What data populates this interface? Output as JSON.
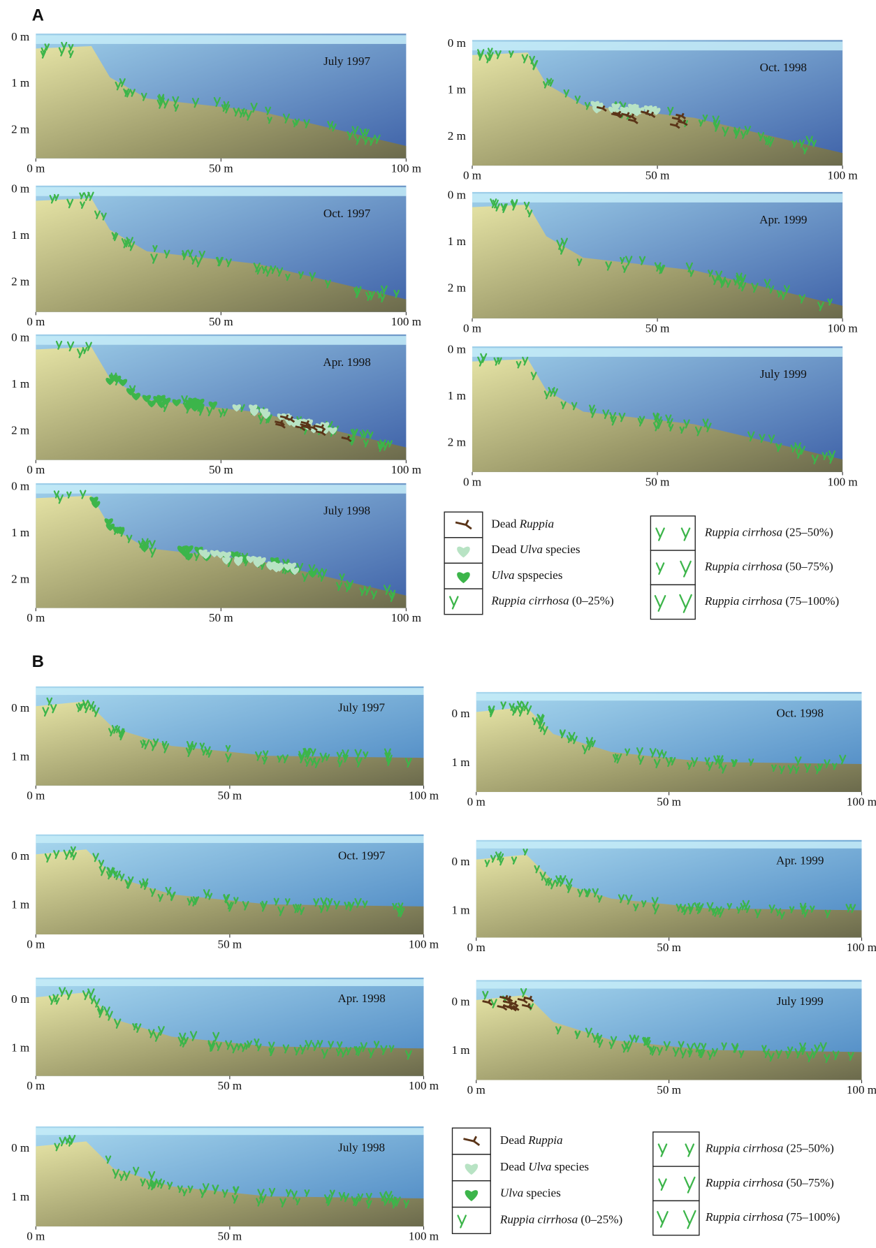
{
  "sections": [
    {
      "label": "A",
      "left": [
        {
          "title": "July 1997",
          "depth_ticks": [
            "0 m",
            "1 m",
            "2 m"
          ],
          "distance_ticks": [
            "0 m",
            "50 m",
            "100 m"
          ]
        },
        {
          "title": "Oct. 1997",
          "depth_ticks": [
            "0 m",
            "1 m",
            "2 m"
          ],
          "distance_ticks": [
            "0 m",
            "50 m",
            "100 m"
          ]
        },
        {
          "title": "Apr. 1998",
          "depth_ticks": [
            "0 m",
            "1 m",
            "2 m"
          ],
          "distance_ticks": [
            "0 m",
            "50 m",
            "100 m"
          ]
        },
        {
          "title": "July 1998",
          "depth_ticks": [
            "0 m",
            "1 m",
            "2 m"
          ],
          "distance_ticks": [
            "0 m",
            "50 m",
            "100 m"
          ]
        }
      ],
      "right": [
        {
          "title": "Oct. 1998",
          "depth_ticks": [
            "0 m",
            "1 m",
            "2 m"
          ],
          "distance_ticks": [
            "0 m",
            "50 m",
            "100 m"
          ]
        },
        {
          "title": "Apr. 1999",
          "depth_ticks": [
            "0 m",
            "1 m",
            "2 m"
          ],
          "distance_ticks": [
            "0 m",
            "50 m",
            "100 m"
          ]
        },
        {
          "title": "July 1999",
          "depth_ticks": [
            "0 m",
            "1 m",
            "2 m"
          ],
          "distance_ticks": [
            "0 m",
            "50 m",
            "100 m"
          ]
        }
      ],
      "legend": {
        "left": [
          {
            "icon": "dead-ruppia",
            "parts": [
              {
                "text": "Dead "
              },
              {
                "text": "Ruppia",
                "style": "italic"
              }
            ]
          },
          {
            "icon": "dead-ulva",
            "parts": [
              {
                "text": "Dead "
              },
              {
                "text": "Ulva",
                "style": "italic"
              },
              {
                "text": " species"
              }
            ]
          },
          {
            "icon": "ulva",
            "parts": [
              {
                "text": "Ulva",
                "style": "italic"
              },
              {
                "text": " spspecies"
              }
            ]
          },
          {
            "icon": "ruppia-1",
            "parts": [
              {
                "text": "Ruppia cirrhosa",
                "style": "italic"
              },
              {
                "text": " (0–25%)"
              }
            ]
          }
        ],
        "right": [
          {
            "icon": "ruppia-2",
            "parts": [
              {
                "text": "Ruppia cirrhosa",
                "style": "italic"
              },
              {
                "text": " (25–50%)"
              }
            ]
          },
          {
            "icon": "ruppia-3",
            "parts": [
              {
                "text": "Ruppia cirrhosa",
                "style": "italic"
              },
              {
                "text": " (50–75%)"
              }
            ]
          },
          {
            "icon": "ruppia-4",
            "parts": [
              {
                "text": "Ruppia cirrhosa",
                "style": "italic"
              },
              {
                "text": " (75–100%)"
              }
            ]
          }
        ]
      }
    },
    {
      "label": "B",
      "left": [
        {
          "title": "July 1997",
          "depth_ticks": [
            "0 m",
            "1 m"
          ],
          "distance_ticks": [
            "0 m",
            "50 m",
            "100 m"
          ]
        },
        {
          "title": "Oct. 1997",
          "depth_ticks": [
            "0 m",
            "1 m"
          ],
          "distance_ticks": [
            "0 m",
            "50 m",
            "100 m"
          ]
        },
        {
          "title": "Apr. 1998",
          "depth_ticks": [
            "0 m",
            "1 m"
          ],
          "distance_ticks": [
            "0 m",
            "50 m",
            "100 m"
          ]
        },
        {
          "title": "July 1998",
          "depth_ticks": [
            "0 m",
            "1 m"
          ],
          "distance_ticks": [
            "0 m",
            "50 m",
            "100 m"
          ]
        }
      ],
      "right": [
        {
          "title": "Oct. 1998",
          "depth_ticks": [
            "0 m",
            "1 m"
          ],
          "distance_ticks": [
            "0 m",
            "50 m",
            "100 m"
          ]
        },
        {
          "title": "Apr. 1999",
          "depth_ticks": [
            "0 m",
            "1 m"
          ],
          "distance_ticks": [
            "0 m",
            "50 m",
            "100 m"
          ]
        },
        {
          "title": "July 1999",
          "depth_ticks": [
            "0 m",
            "1 m"
          ],
          "distance_ticks": [
            "0 m",
            "50 m",
            "100 m"
          ]
        }
      ],
      "legend": {
        "left": [
          {
            "icon": "dead-ruppia",
            "parts": [
              {
                "text": "Dead "
              },
              {
                "text": "Ruppia",
                "style": "italic"
              }
            ]
          },
          {
            "icon": "dead-ulva",
            "parts": [
              {
                "text": "Dead "
              },
              {
                "text": "Ulva",
                "style": "italic"
              },
              {
                "text": " species"
              }
            ]
          },
          {
            "icon": "ulva",
            "parts": [
              {
                "text": "Ulva",
                "style": "italic"
              },
              {
                "text": " species"
              }
            ]
          },
          {
            "icon": "ruppia-1",
            "parts": [
              {
                "text": "Ruppia cirrhosa",
                "style": "italic"
              },
              {
                "text": " (0–25%)"
              }
            ]
          }
        ],
        "right": [
          {
            "icon": "ruppia-2",
            "parts": [
              {
                "text": "Ruppia cirrhosa",
                "style": "italic"
              },
              {
                "text": " (25–50%)"
              }
            ]
          },
          {
            "icon": "ruppia-3",
            "parts": [
              {
                "text": "Ruppia cirrhosa",
                "style": "italic"
              },
              {
                "text": " (50–75%)"
              }
            ]
          },
          {
            "icon": "ruppia-4",
            "parts": [
              {
                "text": "Ruppia cirrhosa",
                "style": "italic"
              },
              {
                "text": " (75–100%)"
              }
            ]
          }
        ]
      }
    }
  ]
}
